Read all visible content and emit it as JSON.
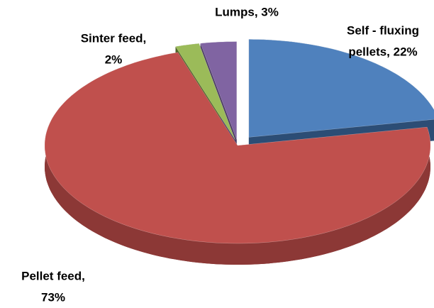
{
  "chart_data": {
    "type": "pie",
    "values": [
      22,
      73,
      2,
      3
    ],
    "value_labels": [
      [
        "Self - fluxing",
        "pellets, 22%"
      ],
      [
        "Pellet feed,",
        "73%"
      ],
      [
        "Sinter feed,",
        "2%"
      ],
      [
        "Lumps, 3%"
      ]
    ],
    "colors": [
      "#4f81bd",
      "#c0504d",
      "#9bbb59",
      "#8064a2"
    ],
    "side_colors": [
      "#2c4d75",
      "#8c3836",
      "#4f6228",
      "#4b3b63"
    ]
  }
}
